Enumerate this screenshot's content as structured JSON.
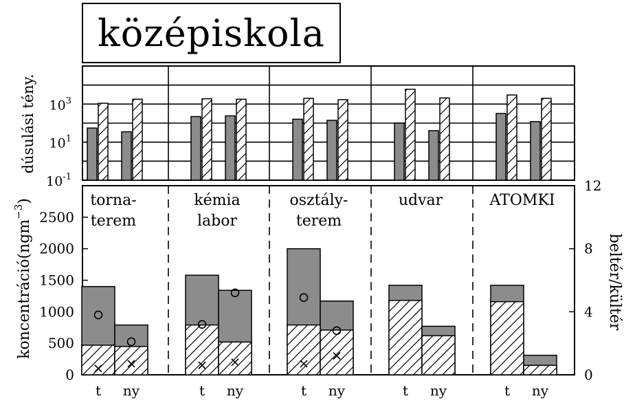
{
  "chart_data": [
    {
      "type": "bar",
      "title": "középiskola",
      "ylabel": "dúsulási tény.",
      "yscale": "log",
      "ylim": [
        0.1,
        100000
      ],
      "yticks": [
        {
          "value": 0.1,
          "base": "10",
          "exp": "-1"
        },
        {
          "value": 10,
          "base": "10",
          "exp": "1"
        },
        {
          "value": 1000,
          "base": "10",
          "exp": "3"
        }
      ],
      "grid": "horizontal",
      "groups": [
        "tornaterem",
        "kémia labor",
        "osztályterem",
        "udvar",
        "ATOMKI"
      ],
      "series": [
        {
          "style": "gray-filled",
          "t": [
            55,
            220,
            160,
            100,
            320
          ],
          "ny": [
            35,
            240,
            140,
            40,
            120
          ]
        },
        {
          "style": "hatched",
          "t": [
            1100,
            1900,
            2000,
            6000,
            3000
          ],
          "ny": [
            1800,
            1800,
            1700,
            2100,
            2000
          ]
        }
      ]
    },
    {
      "type": "bar",
      "ylabel": "koncentráció(ngm",
      "ylabel_exp": "−3",
      "ylabel_end": ")",
      "y2label": "beltér/kültér",
      "ylim": [
        0,
        3000
      ],
      "yticks": [
        0,
        500,
        1000,
        1500,
        2000,
        2500
      ],
      "y2lim": [
        0,
        12
      ],
      "y2ticks": [
        0,
        4,
        8,
        12
      ],
      "groups": [
        {
          "label": [
            "torna-",
            "terem"
          ],
          "t": {
            "total": 1400,
            "hatched": 470,
            "circle": 3.8,
            "cross": 0.4
          },
          "ny": {
            "total": 790,
            "hatched": 450,
            "circle": 2.1,
            "cross": 0.7
          }
        },
        {
          "label": [
            "kémia",
            "labor"
          ],
          "t": {
            "total": 1580,
            "hatched": 790,
            "circle": 3.2,
            "cross": 0.6
          },
          "ny": {
            "total": 1340,
            "hatched": 520,
            "circle": 5.2,
            "cross": 0.8
          }
        },
        {
          "label": [
            "osztály-",
            "terem"
          ],
          "t": {
            "total": 2000,
            "hatched": 790,
            "circle": 4.9,
            "cross": 0.7
          },
          "ny": {
            "total": 1170,
            "hatched": 710,
            "circle": 2.8,
            "cross": 1.2
          }
        },
        {
          "label": [
            "udvar"
          ],
          "t": {
            "total": 1420,
            "hatched": 1180
          },
          "ny": {
            "total": 770,
            "hatched": 620
          }
        },
        {
          "label": [
            "ATOMKI"
          ],
          "t": {
            "total": 1420,
            "hatched": 1160
          },
          "ny": {
            "total": 310,
            "hatched": 150
          }
        }
      ],
      "categories": [
        "t",
        "ny"
      ]
    }
  ]
}
